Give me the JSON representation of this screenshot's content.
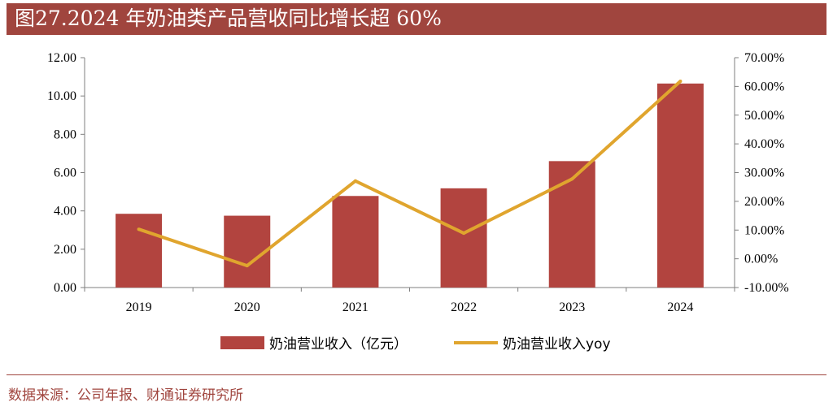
{
  "title": "图27.2024 年奶油类产品营收同比增长超 60%",
  "source": "数据来源：公司年报、财通证券研究所",
  "colors": {
    "bar": "#b2443f",
    "line": "#e0a52e",
    "accent": "#a0453e"
  },
  "chart_data": {
    "type": "bar",
    "categories": [
      "2019",
      "2020",
      "2021",
      "2022",
      "2023",
      "2024"
    ],
    "series": [
      {
        "name": "奶油营业收入（亿元）",
        "type": "bar",
        "axis": "left",
        "values": [
          3.85,
          3.75,
          4.78,
          5.18,
          6.6,
          10.65
        ]
      },
      {
        "name": "奶油营业收入yoy",
        "type": "line",
        "axis": "right",
        "values": [
          10.3,
          -2.4,
          27.1,
          8.9,
          27.8,
          61.8
        ]
      }
    ],
    "y_left": {
      "min": 0,
      "max": 12,
      "ticks": [
        "0.00",
        "2.00",
        "4.00",
        "6.00",
        "8.00",
        "10.00",
        "12.00"
      ]
    },
    "y_right": {
      "min": -10,
      "max": 70,
      "ticks": [
        "-10.00%",
        "0.00%",
        "10.00%",
        "20.00%",
        "30.00%",
        "40.00%",
        "50.00%",
        "60.00%",
        "70.00%"
      ]
    },
    "legend": "bottom",
    "grid": false
  }
}
